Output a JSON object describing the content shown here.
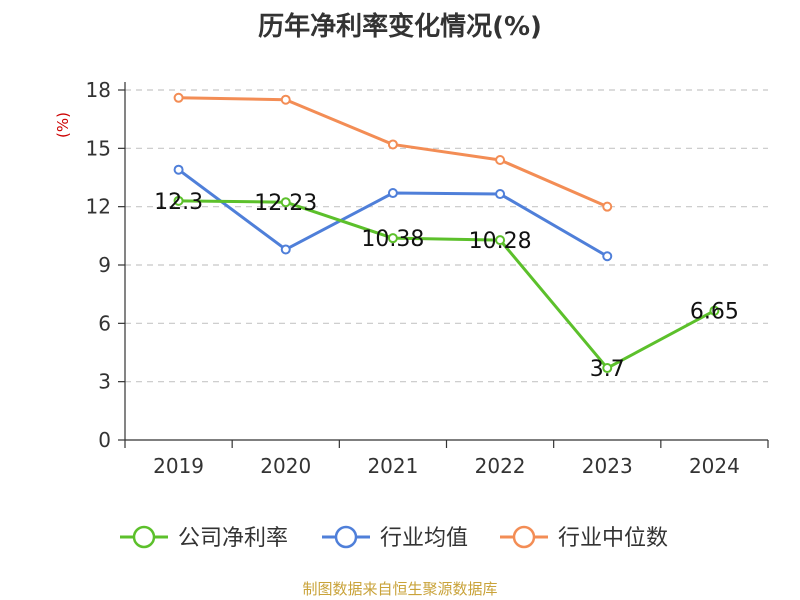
{
  "chart_data": {
    "type": "line",
    "title": "历年净利率变化情况(%)",
    "ylabel": "(%)",
    "xlabel": "",
    "categories": [
      "2019",
      "2020",
      "2021",
      "2022",
      "2023",
      "2024"
    ],
    "ylim": [
      0,
      18
    ],
    "yticks": [
      0,
      3,
      6,
      9,
      12,
      15,
      18
    ],
    "grid": true,
    "legend_position": "bottom",
    "series": [
      {
        "name": "公司净利率",
        "color": "#5cc02b",
        "values": [
          12.3,
          12.23,
          10.38,
          10.28,
          3.7,
          6.65
        ],
        "labels": [
          "12.3",
          "12.23",
          "10.38",
          "10.28",
          "3.7",
          "6.65"
        ]
      },
      {
        "name": "行业均值",
        "color": "#4f7fd9",
        "values": [
          13.9,
          9.8,
          12.7,
          12.65,
          9.45,
          null
        ]
      },
      {
        "name": "行业中位数",
        "color": "#f38d55",
        "values": [
          17.6,
          17.5,
          15.2,
          14.4,
          12.0,
          null
        ]
      }
    ]
  },
  "footer": "制图数据来自恒生聚源数据库"
}
